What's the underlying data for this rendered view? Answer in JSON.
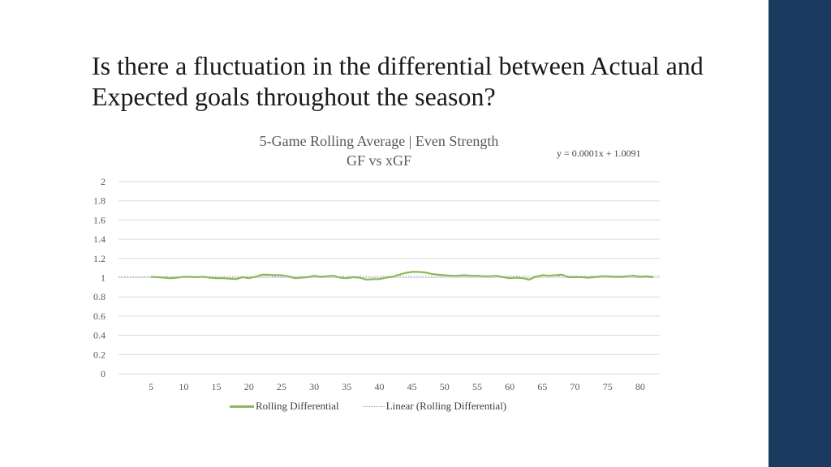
{
  "slide": {
    "title": "Is there a fluctuation in the differential between Actual and Expected goals throughout the season?"
  },
  "colors": {
    "sidebar": "#1b3a5f",
    "series": "#8db85a",
    "trend": "#8a9bb8",
    "grid": "#d9d9d9",
    "text": "#595959"
  },
  "chart_data": {
    "type": "line",
    "title_lines": [
      "5-Game Rolling Average | Even Strength",
      "GF vs xGF"
    ],
    "trendline_equation": "y = 0.0001x + 1.0091",
    "ylim": [
      0,
      2
    ],
    "yticks": [
      "0",
      "0.2",
      "0.4",
      "0.6",
      "0.8",
      "1",
      "1.2",
      "1.4",
      "1.6",
      "1.8",
      "2"
    ],
    "xlim": [
      0,
      83
    ],
    "xticks": [
      "5",
      "10",
      "15",
      "20",
      "25",
      "30",
      "35",
      "40",
      "45",
      "50",
      "55",
      "60",
      "65",
      "70",
      "75",
      "80"
    ],
    "grid": true,
    "legend_position": "bottom",
    "series": [
      {
        "name": "Rolling Differential",
        "x": [
          5,
          6,
          7,
          8,
          9,
          10,
          11,
          12,
          13,
          14,
          15,
          16,
          17,
          18,
          19,
          20,
          21,
          22,
          23,
          24,
          25,
          26,
          27,
          28,
          29,
          30,
          31,
          32,
          33,
          34,
          35,
          36,
          37,
          38,
          39,
          40,
          41,
          42,
          43,
          44,
          45,
          46,
          47,
          48,
          49,
          50,
          51,
          52,
          53,
          54,
          55,
          56,
          57,
          58,
          59,
          60,
          61,
          62,
          63,
          64,
          65,
          66,
          67,
          68,
          69,
          70,
          71,
          72,
          73,
          74,
          75,
          76,
          77,
          78,
          79,
          80,
          81,
          82
        ],
        "values": [
          1.01,
          1.005,
          1.0,
          0.995,
          1.0,
          1.01,
          1.01,
          1.005,
          1.01,
          1.0,
          0.995,
          0.995,
          0.99,
          0.985,
          1.005,
          0.995,
          1.01,
          1.03,
          1.03,
          1.025,
          1.025,
          1.015,
          0.995,
          1.0,
          1.005,
          1.02,
          1.01,
          1.015,
          1.02,
          1.0,
          0.995,
          1.005,
          1.0,
          0.98,
          0.985,
          0.985,
          1.0,
          1.01,
          1.03,
          1.05,
          1.06,
          1.06,
          1.055,
          1.04,
          1.03,
          1.025,
          1.02,
          1.02,
          1.025,
          1.02,
          1.02,
          1.015,
          1.015,
          1.02,
          1.005,
          0.995,
          1.0,
          0.995,
          0.98,
          1.01,
          1.025,
          1.02,
          1.025,
          1.03,
          1.005,
          1.005,
          1.005,
          1.0,
          1.005,
          1.015,
          1.015,
          1.01,
          1.01,
          1.015,
          1.02,
          1.01,
          1.015,
          1.005
        ]
      },
      {
        "name": "Linear (Rolling Differential)",
        "trend": {
          "slope": 0.0001,
          "intercept": 1.0091
        }
      }
    ]
  }
}
